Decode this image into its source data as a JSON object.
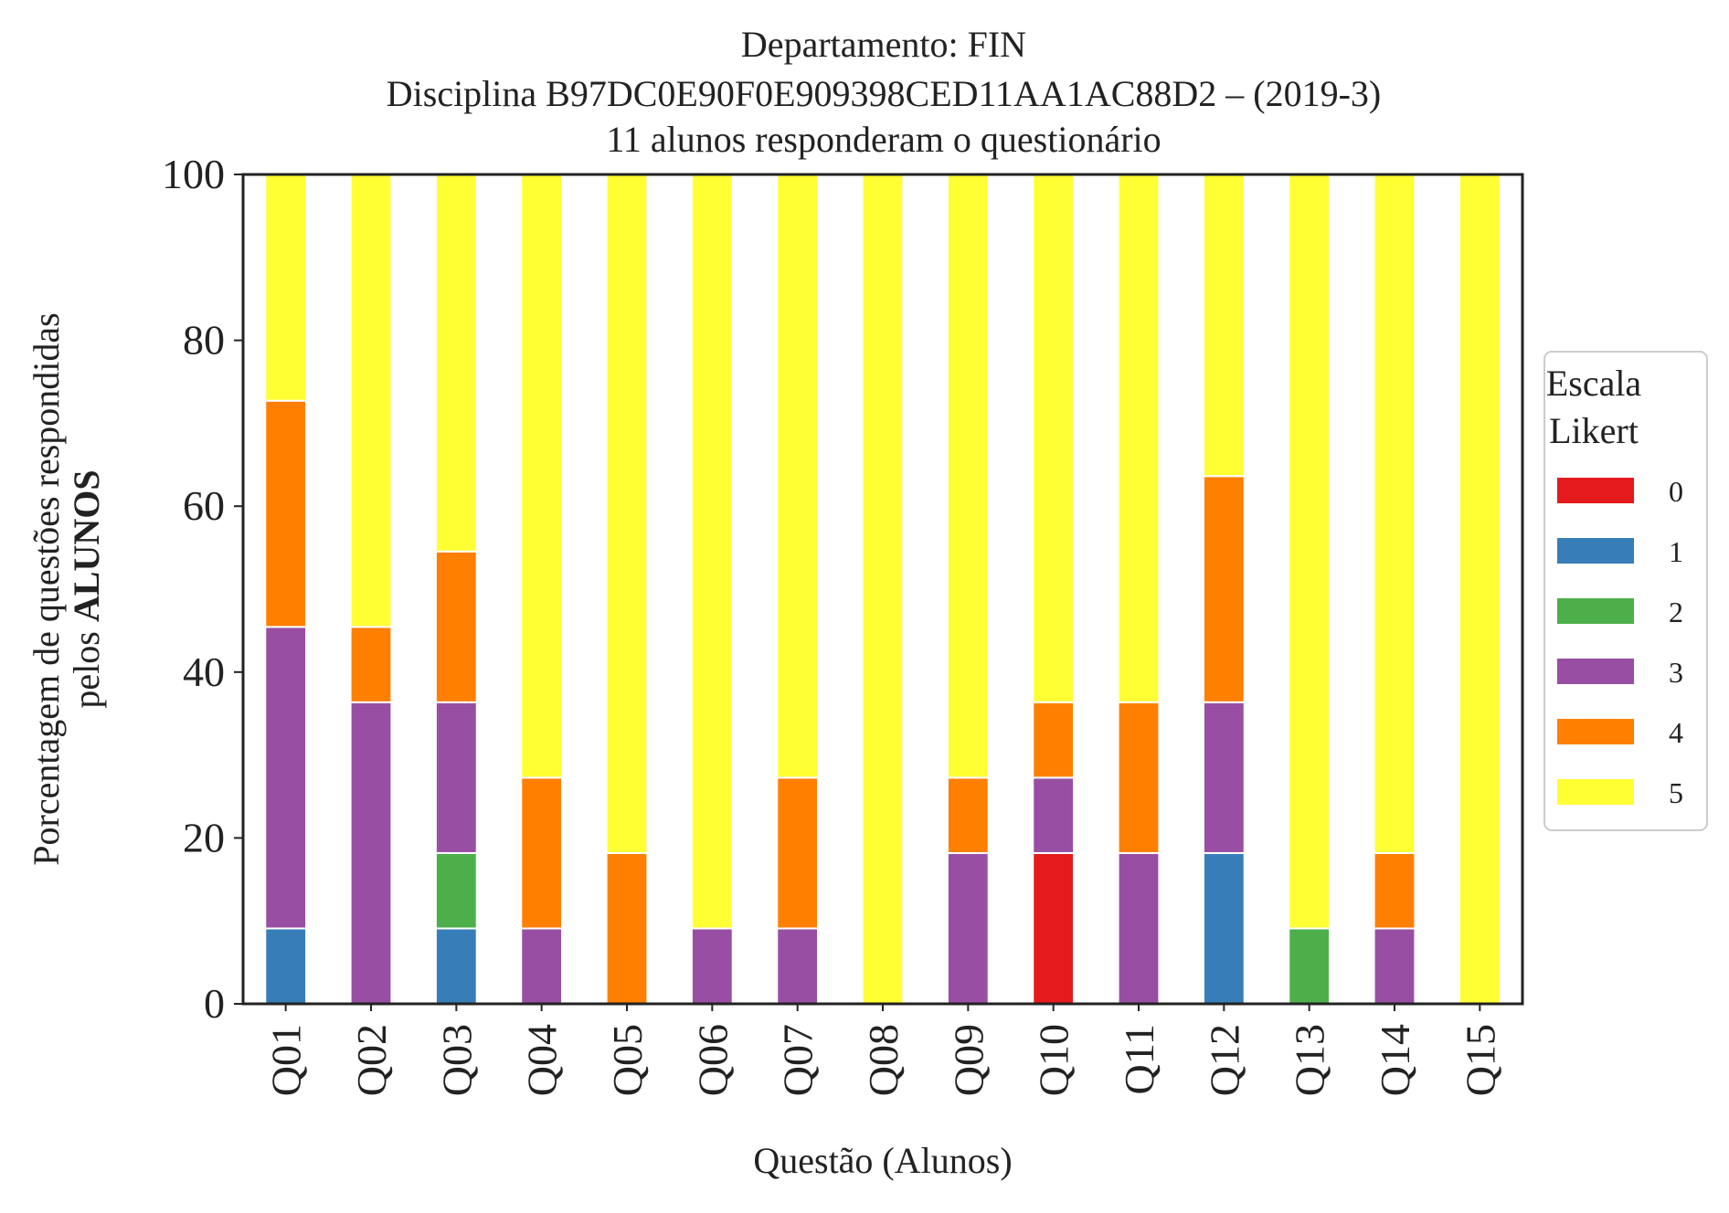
{
  "chart_data": {
    "type": "bar",
    "stacked": true,
    "title_lines": [
      "Departamento: FIN",
      "Disciplina B97DC0E90F0E909398CED11AA1AC88D2 – (2019-3)",
      "11 alunos responderam o questionário"
    ],
    "xlabel": "Questão (Alunos)",
    "ylabel_line1": "Porcentagem de questões respondidas",
    "ylabel_line2_prefix": "pelos ",
    "ylabel_line2_bold": "ALUNOS",
    "ylim": [
      0,
      100
    ],
    "yticks": [
      "0",
      "20",
      "40",
      "60",
      "80",
      "100"
    ],
    "grid": false,
    "legend_placement": "right-outside",
    "legend_title_lines": [
      "Escala",
      "Likert"
    ],
    "categories": [
      "Q01",
      "Q02",
      "Q03",
      "Q04",
      "Q05",
      "Q06",
      "Q07",
      "Q08",
      "Q09",
      "Q10",
      "Q11",
      "Q12",
      "Q13",
      "Q14",
      "Q15"
    ],
    "series": [
      {
        "name": "0",
        "color": "#e41a1c",
        "values": [
          0,
          0,
          0,
          0,
          0,
          0,
          0,
          0,
          0,
          18.18,
          0,
          0,
          0,
          0,
          0
        ]
      },
      {
        "name": "1",
        "color": "#377eb8",
        "values": [
          9.09,
          0,
          9.09,
          0,
          0,
          0,
          0,
          0,
          0,
          0,
          0,
          18.18,
          0,
          0,
          0
        ]
      },
      {
        "name": "2",
        "color": "#4daf4a",
        "values": [
          0,
          0,
          9.09,
          0,
          0,
          0,
          0,
          0,
          0,
          0,
          0,
          0,
          9.09,
          0,
          0
        ]
      },
      {
        "name": "3",
        "color": "#984ea3",
        "values": [
          36.36,
          36.36,
          18.18,
          9.09,
          0,
          9.09,
          9.09,
          0,
          18.18,
          9.09,
          18.18,
          18.18,
          0,
          9.09,
          0
        ]
      },
      {
        "name": "4",
        "color": "#ff7f00",
        "values": [
          27.27,
          9.09,
          18.18,
          18.18,
          18.18,
          0,
          18.18,
          0,
          9.09,
          9.09,
          18.18,
          27.27,
          0,
          9.09,
          0
        ]
      },
      {
        "name": "5",
        "color": "#ffff33",
        "values": [
          27.27,
          54.55,
          45.45,
          72.73,
          81.82,
          90.91,
          72.73,
          100,
          72.73,
          63.64,
          63.64,
          36.36,
          90.91,
          81.82,
          100
        ]
      }
    ]
  }
}
